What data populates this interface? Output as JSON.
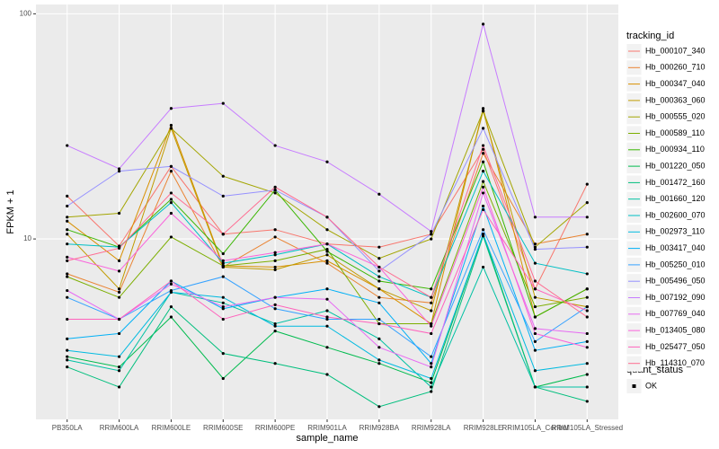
{
  "chart_data": {
    "type": "line",
    "x_label": "sample_name",
    "y_label": "FPKM + 1",
    "categories": [
      "PB350LA",
      "RRIM600LA",
      "RRIM600LE",
      "RRIM600SE",
      "RRIM600PE",
      "RRIM901LA",
      "RRIM928BA",
      "RRIM928LA",
      "RRIM928LE",
      "RRIM105LA_Control",
      "RRIM105LA_Stressed"
    ],
    "ylim": [
      1.58,
      110
    ],
    "yticks": [
      10,
      100
    ],
    "log_y": true,
    "grid": true,
    "point_color": "#000000",
    "legend_title": "tracking_id",
    "legend_position": "right",
    "shape_legend_title": "quant_status",
    "shape_legend_entries": [
      "OK"
    ],
    "series": [
      {
        "name": "Hb_000107_340",
        "color": "#F8766D",
        "values": [
          15.5,
          9.3,
          21,
          10.5,
          11,
          9.5,
          9.2,
          10.5,
          25,
          6,
          17.5
        ]
      },
      {
        "name": "Hb_000260_710",
        "color": "#EA8331",
        "values": [
          7,
          5.8,
          20,
          7.5,
          10.2,
          7.8,
          5.5,
          5.2,
          24,
          9.5,
          10.5
        ]
      },
      {
        "name": "Hb_000347_040",
        "color": "#D89000",
        "values": [
          12,
          8,
          32,
          7.6,
          7.5,
          8,
          6,
          4.2,
          38,
          4.5,
          6
        ]
      },
      {
        "name": "Hb_000363_060",
        "color": "#C09B00",
        "values": [
          10.5,
          6,
          31,
          7.5,
          7.3,
          8.5,
          6,
          4.8,
          37,
          5.5,
          5
        ]
      },
      {
        "name": "Hb_000555_020",
        "color": "#A3A500",
        "values": [
          12.5,
          13,
          31,
          19,
          16,
          11,
          8.2,
          10,
          37,
          9.2,
          14.5
        ]
      },
      {
        "name": "Hb_000589_110",
        "color": "#7CAE00",
        "values": [
          6.8,
          5.5,
          10.2,
          7.6,
          8,
          9,
          4.2,
          4.2,
          18,
          5,
          5.5
        ]
      },
      {
        "name": "Hb_000934_110",
        "color": "#39B600",
        "values": [
          11,
          9.2,
          15,
          8.6,
          16.5,
          8.8,
          6.5,
          6,
          22,
          4.5,
          6
        ]
      },
      {
        "name": "Hb_001220_050",
        "color": "#00BB4E",
        "values": [
          3,
          2.7,
          4.5,
          2.4,
          3.9,
          3.3,
          2.8,
          2.3,
          10.5,
          2.2,
          2.5
        ]
      },
      {
        "name": "Hb_001472_160",
        "color": "#00BF7D",
        "values": [
          2.7,
          2.2,
          5,
          3.1,
          2.8,
          2.5,
          1.8,
          2.1,
          10.3,
          2.2,
          1.9
        ]
      },
      {
        "name": "Hb_001660_120",
        "color": "#00C1A3",
        "values": [
          2.9,
          2.6,
          5.8,
          5.2,
          4.2,
          4.8,
          3.6,
          2.2,
          7.5,
          2.2,
          2.2
        ]
      },
      {
        "name": "Hb_002600_070",
        "color": "#00BFC4",
        "values": [
          9.5,
          9.2,
          14.5,
          7.8,
          8.5,
          9.5,
          6.8,
          5.5,
          20,
          7.8,
          7
        ]
      },
      {
        "name": "Hb_002973_110",
        "color": "#00BAE0",
        "values": [
          3.2,
          3.0,
          5.8,
          5.5,
          4.1,
          4.1,
          2.9,
          2.4,
          10.5,
          2.6,
          2.8
        ]
      },
      {
        "name": "Hb_003417_040",
        "color": "#00B0F6",
        "values": [
          3.6,
          3.8,
          6.5,
          4.9,
          5.5,
          6,
          5.2,
          2.8,
          14,
          3.2,
          3.5
        ]
      },
      {
        "name": "Hb_005250_010",
        "color": "#35A2FF",
        "values": [
          5.5,
          4.4,
          5.9,
          6.8,
          4.9,
          4.4,
          4.4,
          3.0,
          11,
          3.5,
          5
        ]
      },
      {
        "name": "Hb_005496_050",
        "color": "#9590FF",
        "values": [
          14,
          20,
          21,
          15.5,
          16.5,
          12.5,
          7.2,
          10.5,
          31,
          9,
          9.2
        ]
      },
      {
        "name": "Hb_007192_090",
        "color": "#C77CFF",
        "values": [
          26,
          20.5,
          38,
          40,
          26,
          22,
          15.8,
          10.8,
          90,
          12.5,
          12.5
        ]
      },
      {
        "name": "Hb_007769_040",
        "color": "#E76BF3",
        "values": [
          5.9,
          4.4,
          6.3,
          5.0,
          5.5,
          5.4,
          3.3,
          2.7,
          16,
          4,
          3.8
        ]
      },
      {
        "name": "Hb_013405_080",
        "color": "#FA62DB",
        "values": [
          8.3,
          7.2,
          13,
          8,
          8.7,
          9.5,
          7.5,
          4.1,
          17,
          3.8,
          3.3
        ]
      },
      {
        "name": "Hb_025477_050",
        "color": "#FF62BC",
        "values": [
          4.4,
          4.4,
          6.5,
          4.4,
          5.1,
          4.5,
          4.2,
          3.8,
          13.5,
          6,
          4.8
        ]
      },
      {
        "name": "Hb_114310_070",
        "color": "#FF6C91",
        "values": [
          8,
          9.1,
          16,
          10.5,
          17,
          12.5,
          7.5,
          5.5,
          26,
          6.5,
          4.5
        ]
      }
    ]
  }
}
